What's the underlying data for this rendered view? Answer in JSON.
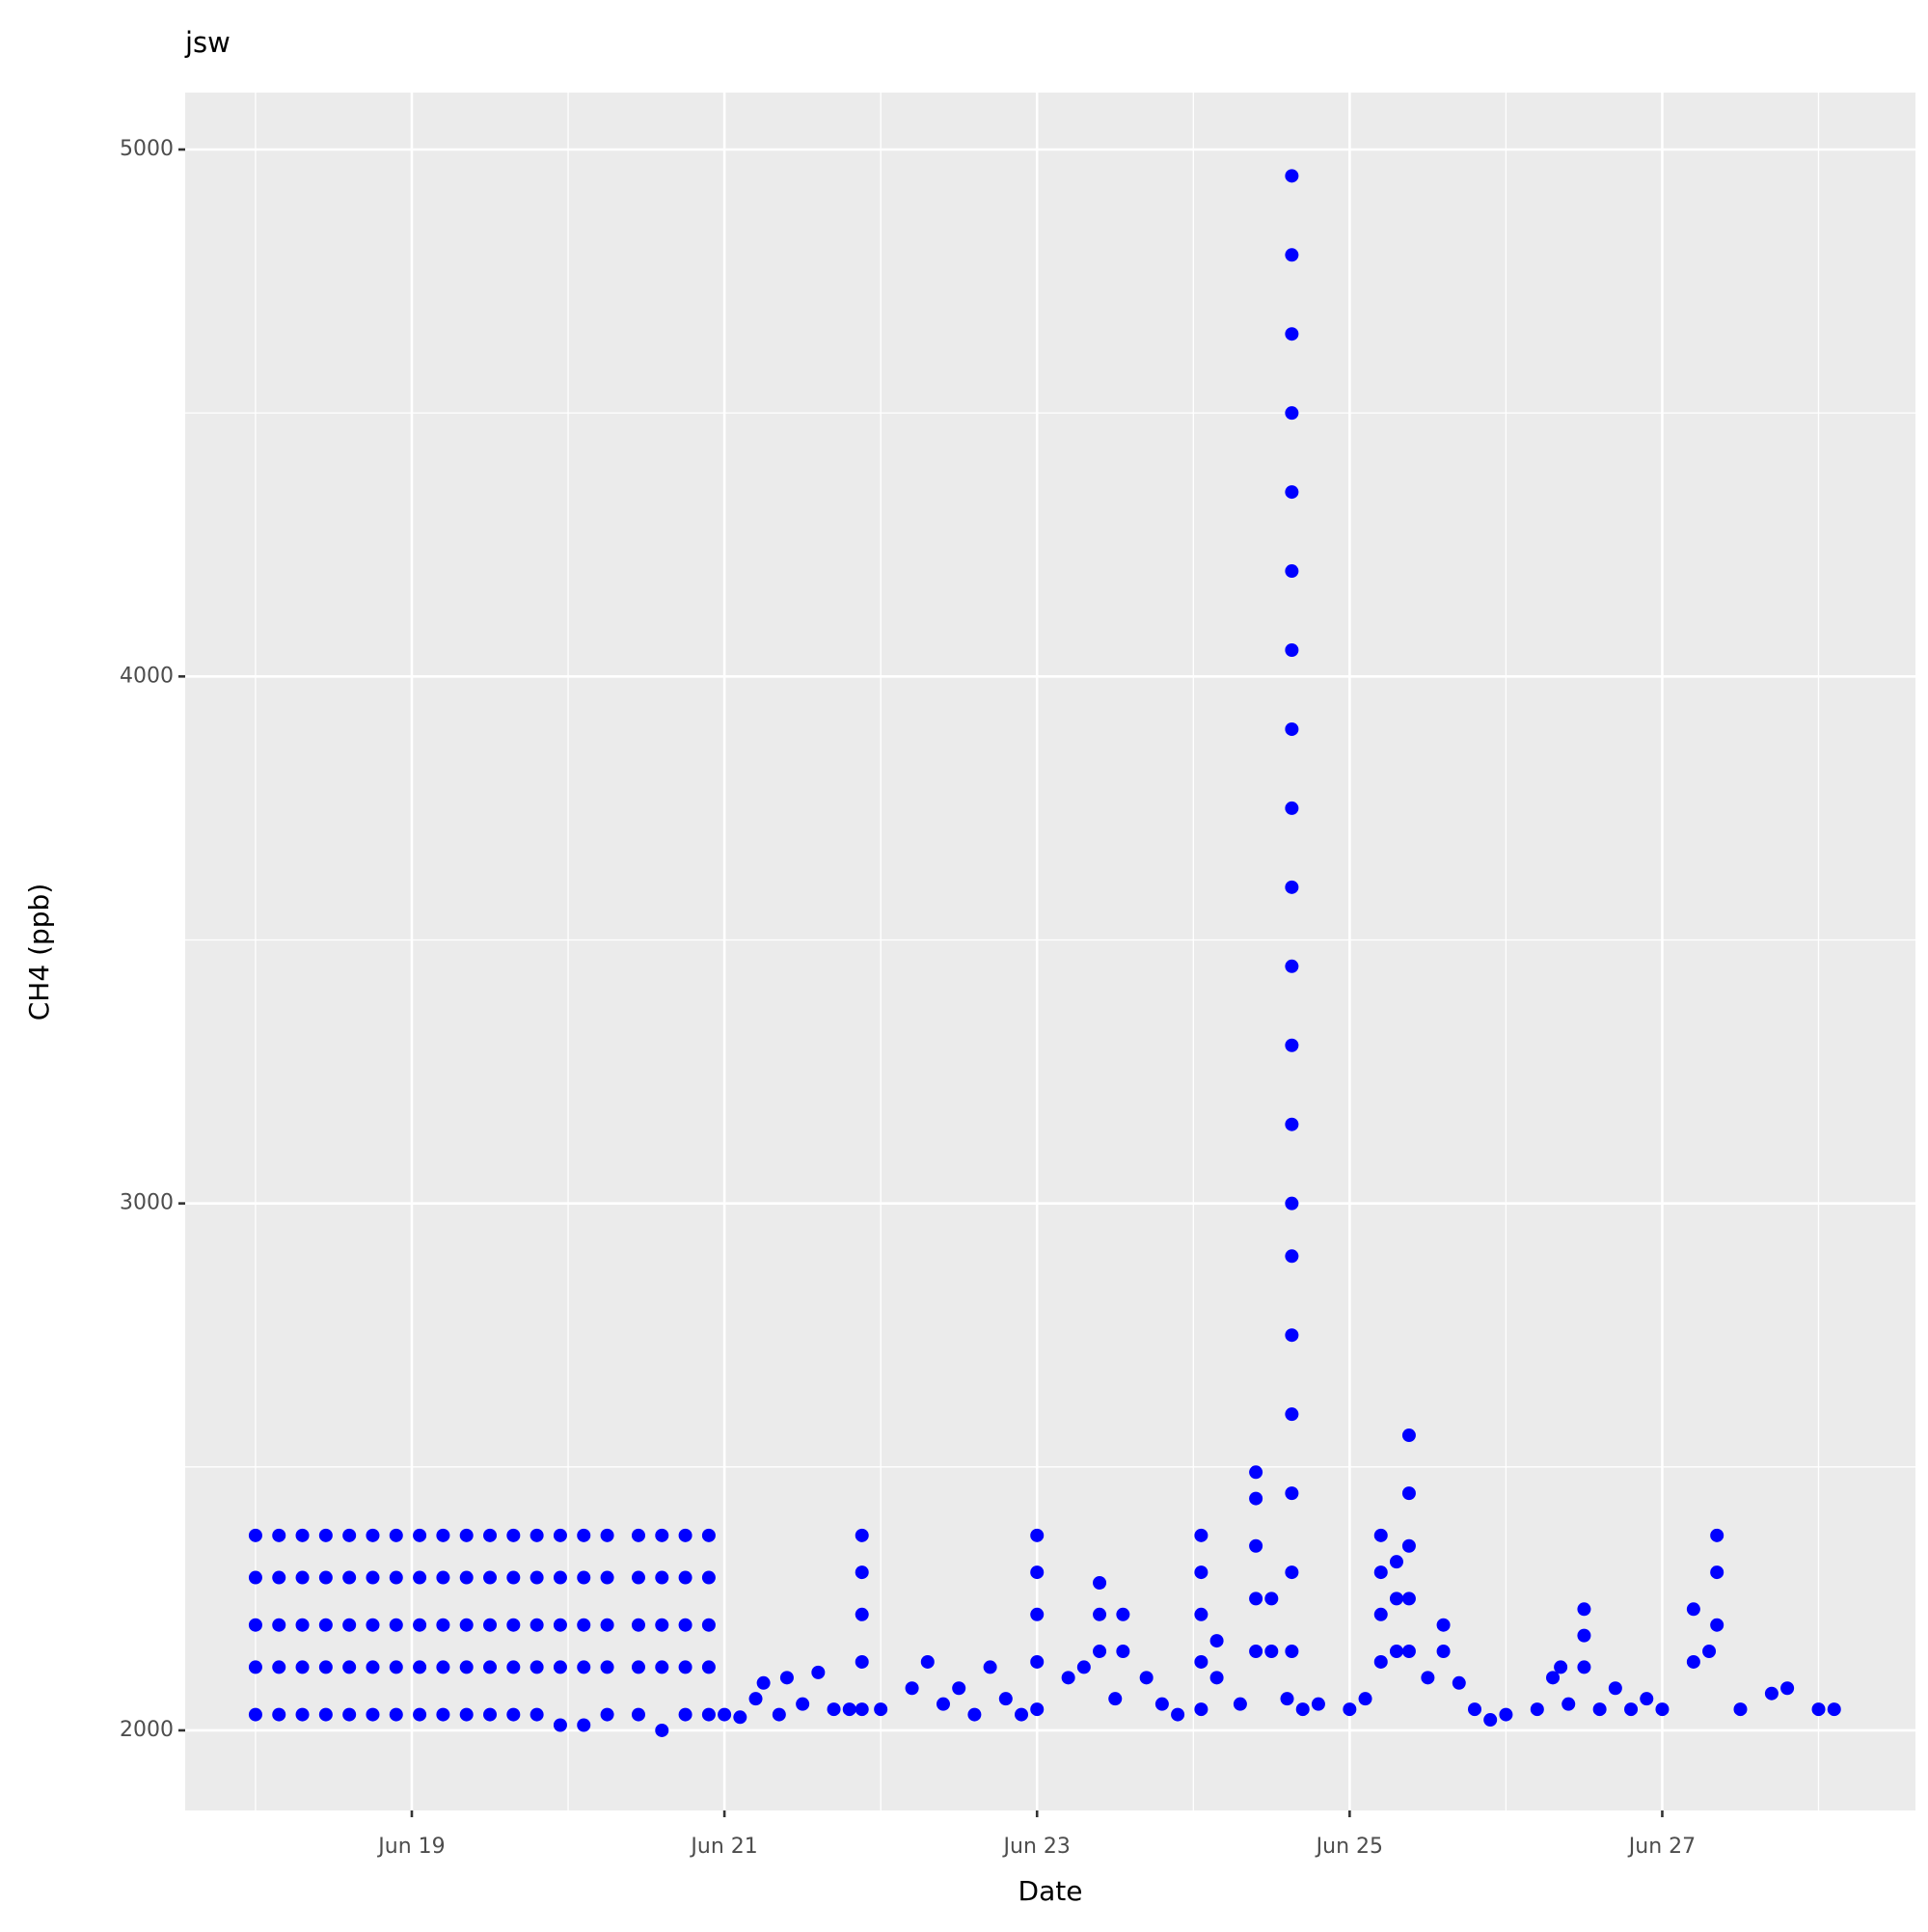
{
  "chart_data": {
    "type": "scatter",
    "title": "jsw",
    "x_label": "Date",
    "y_label": "CH4 (ppb)",
    "color": "#0000ff",
    "grid": true,
    "xlim": [
      17.55,
      28.62
    ],
    "ylim": [
      1848,
      5108
    ],
    "xticks": [
      {
        "value": 19,
        "label": "Jun 19"
      },
      {
        "value": 21,
        "label": "Jun 21"
      },
      {
        "value": 23,
        "label": "Jun 23"
      },
      {
        "value": 25,
        "label": "Jun 25"
      },
      {
        "value": 27,
        "label": "Jun 27"
      }
    ],
    "yticks": [
      2000,
      3000,
      4000,
      5000
    ],
    "x": [
      18.0,
      18.0,
      18.0,
      18.0,
      18.0,
      18.15,
      18.15,
      18.15,
      18.15,
      18.15,
      18.3,
      18.3,
      18.3,
      18.3,
      18.3,
      18.45,
      18.45,
      18.45,
      18.45,
      18.45,
      18.6,
      18.6,
      18.6,
      18.6,
      18.6,
      18.75,
      18.75,
      18.75,
      18.75,
      18.75,
      18.9,
      18.9,
      18.9,
      18.9,
      18.9,
      19.05,
      19.05,
      19.05,
      19.05,
      19.05,
      19.2,
      19.2,
      19.2,
      19.2,
      19.2,
      19.35,
      19.35,
      19.35,
      19.35,
      19.35,
      19.5,
      19.5,
      19.5,
      19.5,
      19.5,
      19.65,
      19.65,
      19.65,
      19.65,
      19.65,
      19.8,
      19.8,
      19.8,
      19.8,
      19.8,
      19.95,
      19.95,
      19.95,
      19.95,
      19.95,
      20.1,
      20.1,
      20.1,
      20.1,
      20.1,
      20.25,
      20.25,
      20.25,
      20.25,
      20.25,
      20.45,
      20.45,
      20.45,
      20.45,
      20.45,
      20.6,
      20.6,
      20.6,
      20.6,
      20.6,
      20.75,
      20.75,
      20.75,
      20.75,
      20.75,
      20.9,
      20.9,
      20.9,
      20.9,
      20.9,
      21.0,
      21.1,
      21.2,
      21.25,
      21.35,
      21.4,
      21.5,
      21.6,
      21.7,
      21.8,
      21.88,
      21.88,
      21.88,
      21.88,
      21.88,
      22.0,
      22.2,
      22.3,
      22.4,
      22.5,
      22.6,
      22.7,
      22.8,
      22.9,
      23.0,
      23.0,
      23.0,
      23.0,
      23.0,
      23.2,
      23.3,
      23.4,
      23.4,
      23.4,
      23.5,
      23.55,
      23.55,
      23.7,
      23.8,
      23.9,
      24.05,
      24.05,
      24.05,
      24.05,
      24.05,
      24.15,
      24.15,
      24.3,
      24.4,
      24.4,
      24.4,
      24.4,
      24.4,
      24.5,
      24.5,
      24.6,
      24.63,
      24.63,
      24.63,
      24.63,
      24.63,
      24.63,
      24.63,
      24.63,
      24.63,
      24.63,
      24.63,
      24.63,
      24.63,
      24.63,
      24.63,
      24.63,
      24.63,
      24.63,
      24.63,
      24.63,
      24.7,
      24.8,
      25.0,
      25.1,
      25.2,
      25.2,
      25.2,
      25.2,
      25.3,
      25.3,
      25.3,
      25.38,
      25.38,
      25.38,
      25.38,
      25.38,
      25.5,
      25.6,
      25.6,
      25.7,
      25.8,
      25.9,
      26.0,
      26.2,
      26.3,
      26.35,
      26.4,
      26.5,
      26.5,
      26.5,
      26.6,
      26.7,
      26.8,
      26.9,
      27.0,
      27.2,
      27.2,
      27.3,
      27.35,
      27.35,
      27.35,
      27.5,
      27.7,
      27.8,
      28.0,
      28.1
    ],
    "values": [
      2030,
      2120,
      2200,
      2290,
      2370,
      2030,
      2120,
      2200,
      2290,
      2370,
      2030,
      2120,
      2200,
      2290,
      2370,
      2030,
      2120,
      2200,
      2290,
      2370,
      2030,
      2120,
      2200,
      2290,
      2370,
      2030,
      2120,
      2200,
      2290,
      2370,
      2030,
      2120,
      2200,
      2290,
      2370,
      2030,
      2120,
      2200,
      2290,
      2370,
      2030,
      2120,
      2200,
      2290,
      2370,
      2030,
      2120,
      2200,
      2290,
      2370,
      2030,
      2120,
      2200,
      2290,
      2370,
      2030,
      2120,
      2200,
      2290,
      2370,
      2030,
      2120,
      2200,
      2290,
      2370,
      2010,
      2120,
      2200,
      2290,
      2370,
      2010,
      2120,
      2200,
      2290,
      2370,
      2030,
      2120,
      2200,
      2290,
      2370,
      2030,
      2120,
      2200,
      2290,
      2370,
      2000,
      2120,
      2200,
      2290,
      2370,
      2030,
      2120,
      2200,
      2290,
      2370,
      2030,
      2120,
      2200,
      2290,
      2370,
      2030,
      2025,
      2060,
      2090,
      2030,
      2100,
      2050,
      2110,
      2040,
      2040,
      2040,
      2130,
      2220,
      2300,
      2370,
      2040,
      2080,
      2130,
      2050,
      2080,
      2030,
      2120,
      2060,
      2030,
      2040,
      2130,
      2220,
      2300,
      2370,
      2100,
      2120,
      2150,
      2220,
      2280,
      2060,
      2150,
      2220,
      2100,
      2050,
      2030,
      2040,
      2130,
      2220,
      2300,
      2370,
      2100,
      2170,
      2050,
      2150,
      2250,
      2350,
      2440,
      2490,
      2150,
      2250,
      2060,
      2150,
      2300,
      2450,
      2600,
      2750,
      2900,
      3000,
      3150,
      3300,
      3450,
      3600,
      3750,
      3900,
      4050,
      4200,
      4350,
      4500,
      4650,
      4800,
      4950,
      2040,
      2050,
      2040,
      2060,
      2130,
      2220,
      2300,
      2370,
      2150,
      2250,
      2320,
      2150,
      2250,
      2350,
      2450,
      2560,
      2100,
      2150,
      2200,
      2090,
      2040,
      2020,
      2030,
      2040,
      2100,
      2120,
      2050,
      2120,
      2180,
      2230,
      2040,
      2080,
      2040,
      2060,
      2040,
      2130,
      2230,
      2150,
      2200,
      2300,
      2370,
      2040,
      2070,
      2080,
      2040,
      2040
    ]
  }
}
